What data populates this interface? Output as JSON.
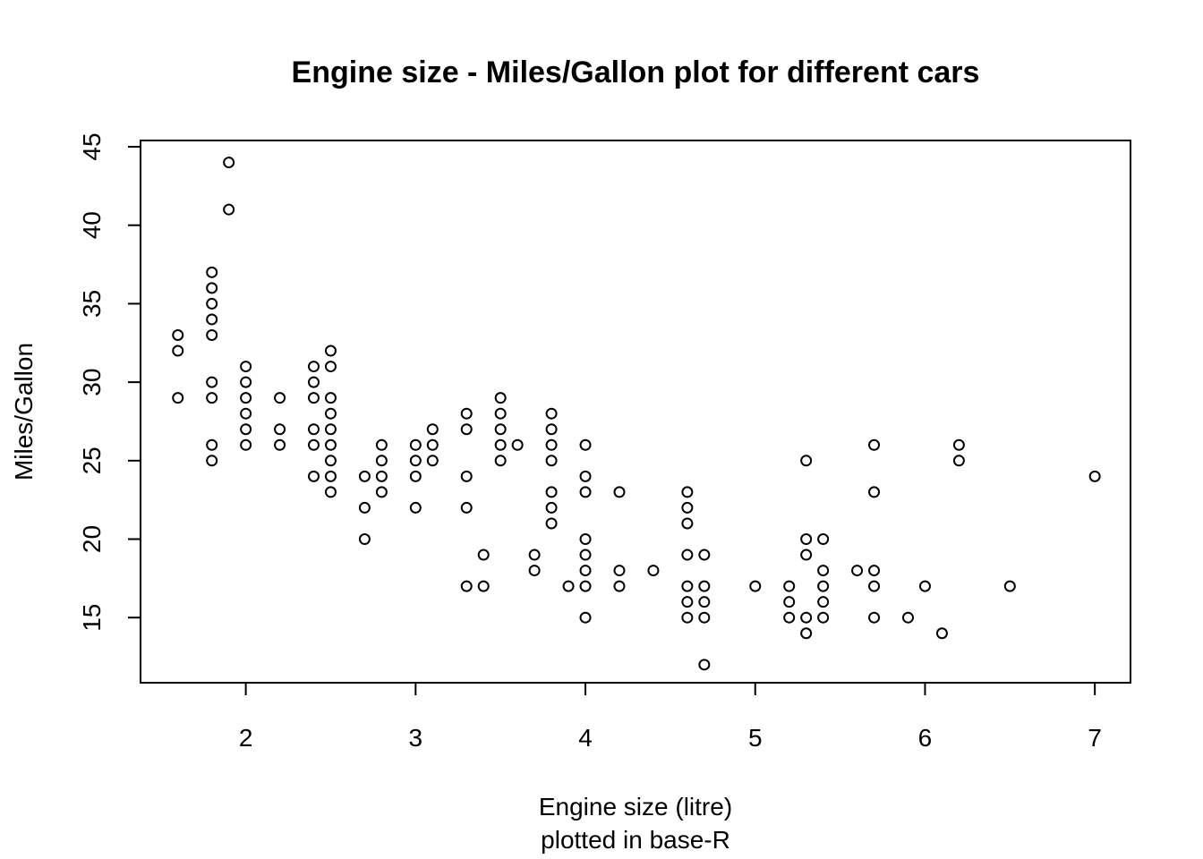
{
  "chart_data": {
    "type": "scatter",
    "title": "Engine size - Miles/Gallon plot for different cars",
    "xlabel": "Engine size (litre)",
    "xlabel_line2": "plotted in base-R",
    "ylabel": "Miles/Gallon",
    "xlim": [
      1.38,
      7.21
    ],
    "ylim": [
      10.85,
      45.4
    ],
    "xticks": [
      2,
      3,
      4,
      5,
      6,
      7
    ],
    "yticks": [
      15,
      20,
      25,
      30,
      35,
      40,
      45
    ],
    "grid": false,
    "legend": "none",
    "marker": "open-circle",
    "points": [
      [
        1.6,
        33
      ],
      [
        1.6,
        32
      ],
      [
        1.6,
        29
      ],
      [
        1.8,
        37
      ],
      [
        1.8,
        36
      ],
      [
        1.8,
        35
      ],
      [
        1.8,
        34
      ],
      [
        1.8,
        33
      ],
      [
        1.8,
        30
      ],
      [
        1.8,
        29
      ],
      [
        1.8,
        26
      ],
      [
        1.8,
        25
      ],
      [
        1.9,
        44
      ],
      [
        1.9,
        41
      ],
      [
        2.0,
        31
      ],
      [
        2.0,
        30
      ],
      [
        2.0,
        29
      ],
      [
        2.0,
        28
      ],
      [
        2.0,
        27
      ],
      [
        2.0,
        26
      ],
      [
        2.2,
        29
      ],
      [
        2.2,
        27
      ],
      [
        2.2,
        26
      ],
      [
        2.4,
        31
      ],
      [
        2.4,
        30
      ],
      [
        2.4,
        29
      ],
      [
        2.4,
        27
      ],
      [
        2.4,
        26
      ],
      [
        2.4,
        24
      ],
      [
        2.5,
        32
      ],
      [
        2.5,
        31
      ],
      [
        2.5,
        29
      ],
      [
        2.5,
        28
      ],
      [
        2.5,
        27
      ],
      [
        2.5,
        26
      ],
      [
        2.5,
        25
      ],
      [
        2.5,
        24
      ],
      [
        2.5,
        23
      ],
      [
        2.7,
        24
      ],
      [
        2.7,
        22
      ],
      [
        2.7,
        20
      ],
      [
        2.8,
        26
      ],
      [
        2.8,
        25
      ],
      [
        2.8,
        24
      ],
      [
        2.8,
        23
      ],
      [
        3.0,
        26
      ],
      [
        3.0,
        25
      ],
      [
        3.0,
        24
      ],
      [
        3.0,
        22
      ],
      [
        3.1,
        27
      ],
      [
        3.1,
        26
      ],
      [
        3.1,
        25
      ],
      [
        3.3,
        28
      ],
      [
        3.3,
        27
      ],
      [
        3.3,
        24
      ],
      [
        3.3,
        22
      ],
      [
        3.3,
        17
      ],
      [
        3.4,
        19
      ],
      [
        3.4,
        17
      ],
      [
        3.5,
        29
      ],
      [
        3.5,
        28
      ],
      [
        3.5,
        27
      ],
      [
        3.5,
        26
      ],
      [
        3.5,
        25
      ],
      [
        3.6,
        26
      ],
      [
        3.7,
        19
      ],
      [
        3.7,
        18
      ],
      [
        3.8,
        28
      ],
      [
        3.8,
        27
      ],
      [
        3.8,
        26
      ],
      [
        3.8,
        25
      ],
      [
        3.8,
        23
      ],
      [
        3.8,
        22
      ],
      [
        3.8,
        21
      ],
      [
        3.9,
        17
      ],
      [
        4.0,
        26
      ],
      [
        4.0,
        24
      ],
      [
        4.0,
        23
      ],
      [
        4.0,
        20
      ],
      [
        4.0,
        19
      ],
      [
        4.0,
        18
      ],
      [
        4.0,
        17
      ],
      [
        4.0,
        15
      ],
      [
        4.2,
        23
      ],
      [
        4.2,
        18
      ],
      [
        4.2,
        17
      ],
      [
        4.4,
        18
      ],
      [
        4.6,
        23
      ],
      [
        4.6,
        22
      ],
      [
        4.6,
        21
      ],
      [
        4.6,
        19
      ],
      [
        4.6,
        17
      ],
      [
        4.6,
        16
      ],
      [
        4.6,
        15
      ],
      [
        4.7,
        19
      ],
      [
        4.7,
        17
      ],
      [
        4.7,
        16
      ],
      [
        4.7,
        15
      ],
      [
        4.7,
        12
      ],
      [
        5.0,
        17
      ],
      [
        5.2,
        17
      ],
      [
        5.2,
        16
      ],
      [
        5.2,
        15
      ],
      [
        5.3,
        25
      ],
      [
        5.3,
        20
      ],
      [
        5.3,
        19
      ],
      [
        5.3,
        15
      ],
      [
        5.3,
        14
      ],
      [
        5.4,
        20
      ],
      [
        5.4,
        18
      ],
      [
        5.4,
        17
      ],
      [
        5.4,
        16
      ],
      [
        5.4,
        15
      ],
      [
        5.6,
        18
      ],
      [
        5.7,
        26
      ],
      [
        5.7,
        23
      ],
      [
        5.7,
        18
      ],
      [
        5.7,
        17
      ],
      [
        5.7,
        15
      ],
      [
        5.9,
        15
      ],
      [
        6.0,
        17
      ],
      [
        6.1,
        14
      ],
      [
        6.2,
        26
      ],
      [
        6.2,
        25
      ],
      [
        6.5,
        17
      ],
      [
        7.0,
        24
      ]
    ]
  }
}
